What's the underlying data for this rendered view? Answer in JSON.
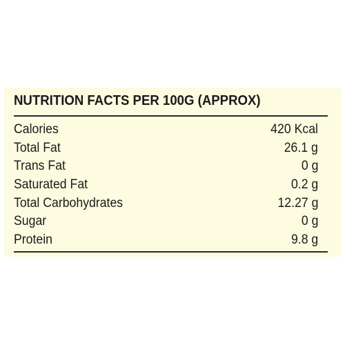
{
  "title": "NUTRITION FACTS PER 100G (APPROX)",
  "rows": [
    {
      "label": "Calories",
      "value": "420 Kcal"
    },
    {
      "label": "Total Fat",
      "value": "26.1 g"
    },
    {
      "label": "Trans Fat",
      "value": "0 g"
    },
    {
      "label": "Saturated Fat",
      "value": "0.2 g"
    },
    {
      "label": "Total Carbohydrates",
      "value": "12.27 g"
    },
    {
      "label": "Sugar",
      "value": "0 g"
    },
    {
      "label": "Protein",
      "value": "9.8 g"
    }
  ],
  "colors": {
    "panel_background": "#fdfbe0",
    "text": "#1a1a1a",
    "rule": "#2a2a2a"
  }
}
